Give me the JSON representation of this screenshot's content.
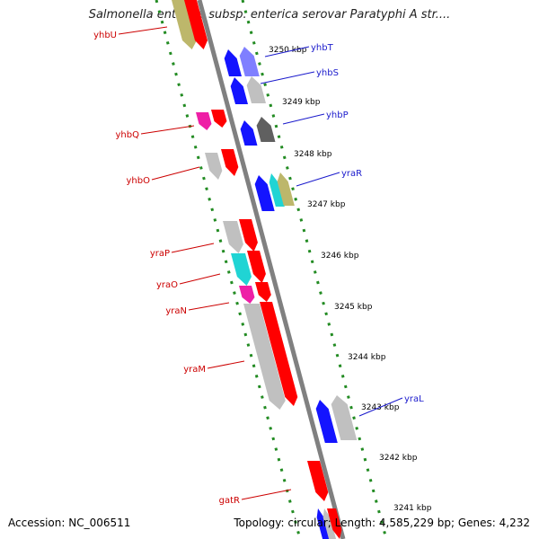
{
  "title": "Salmonella enterica subsp. enterica serovar Paratyphi A str....",
  "footer": {
    "accession": "Accession: NC_006511",
    "summary": "Topology: circular; Length: 4,585,229 bp; Genes: 4,232"
  },
  "colors": {
    "backbone": "#808080",
    "ring_dots": "#228b22",
    "label_forward": "#cc0000",
    "label_reverse": "#1a1acc",
    "red": "#ff0000",
    "blue": "#1414ff",
    "gray": "#c0c0c0",
    "magenta": "#ee1fa6",
    "cyan": "#20d4d4",
    "olive": "#bdb76b",
    "lightblue": "#7f7fff",
    "darkgray": "#606060",
    "teal": "#2cb3b3",
    "khaki": "#808000"
  },
  "ticks": [
    "3250 kbp",
    "3249 kbp",
    "3248 kbp",
    "3247 kbp",
    "3246 kbp",
    "3245 kbp",
    "3244 kbp",
    "3243 kbp",
    "3242 kbp",
    "3241 kbp"
  ],
  "labels_left": [
    "yhbU",
    "yhbQ",
    "yhbO",
    "yraP",
    "yraO",
    "yraN",
    "yraM",
    "gatR"
  ],
  "labels_right": [
    "yhbT",
    "yhbS",
    "yhbP",
    "yraR",
    "yraL"
  ]
}
